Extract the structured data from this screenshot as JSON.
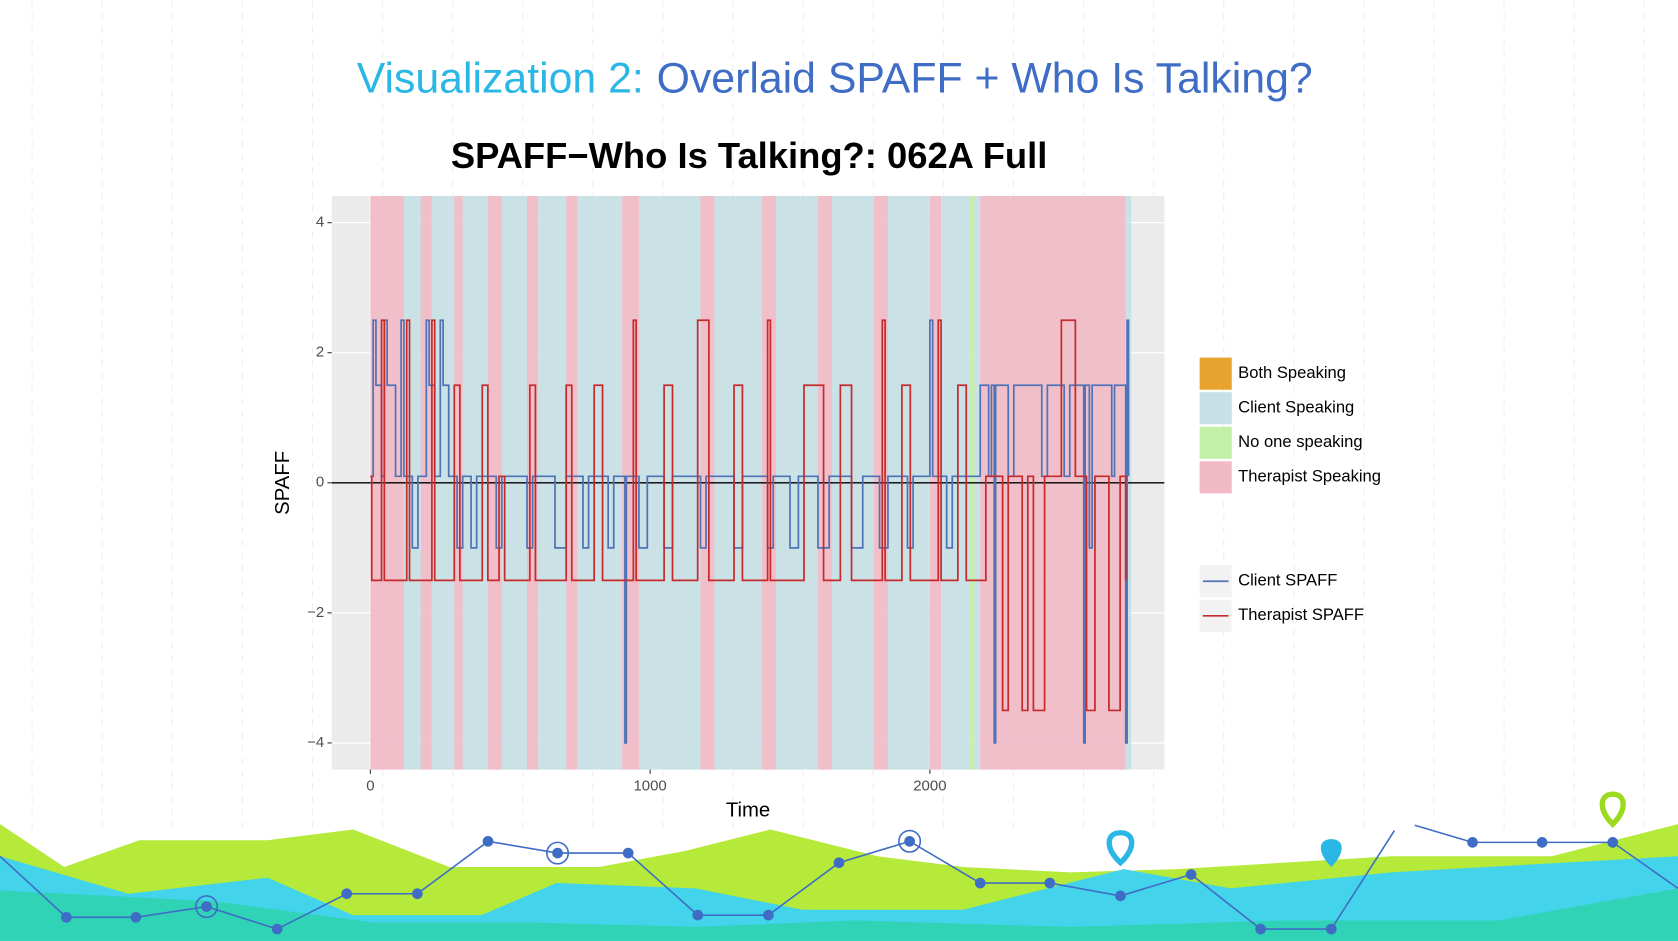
{
  "slide": {
    "title": [
      "Visualization 2:",
      "Overlaid SPAFF + Who Is Talking?"
    ]
  },
  "chart_data": {
    "type": "line",
    "step": true,
    "title": "SPAFF−Who Is Talking?: 062A Full",
    "x_label": "Time",
    "y_label": "SPAFF",
    "xlim": [
      -138,
      2838
    ],
    "ylim": [
      -4.41,
      4.41
    ],
    "xticks": [
      0,
      1000,
      2000
    ],
    "yticks": [
      {
        "value": -4,
        "label": "−4"
      },
      {
        "value": -2,
        "label": "−2"
      },
      0,
      2,
      4
    ],
    "grid": true,
    "hline": 0,
    "fills": [
      {
        "name": "Both Speaking",
        "color": "#E8A22E"
      },
      {
        "name": "Client Speaking",
        "color": "#C7E0E5"
      },
      {
        "name": "No one speaking",
        "color": "#C2F0A6"
      },
      {
        "name": "Therapist Speaking",
        "color": "#F1BAC6"
      }
    ],
    "spans": [
      {
        "x0": 0,
        "x1": 120,
        "fill": 3
      },
      {
        "x0": 120,
        "x1": 180,
        "fill": 1
      },
      {
        "x0": 180,
        "x1": 220,
        "fill": 3
      },
      {
        "x0": 220,
        "x1": 300,
        "fill": 1
      },
      {
        "x0": 300,
        "x1": 330,
        "fill": 3
      },
      {
        "x0": 330,
        "x1": 420,
        "fill": 1
      },
      {
        "x0": 420,
        "x1": 470,
        "fill": 3
      },
      {
        "x0": 470,
        "x1": 560,
        "fill": 1
      },
      {
        "x0": 560,
        "x1": 600,
        "fill": 3
      },
      {
        "x0": 600,
        "x1": 700,
        "fill": 1
      },
      {
        "x0": 700,
        "x1": 740,
        "fill": 3
      },
      {
        "x0": 740,
        "x1": 900,
        "fill": 1
      },
      {
        "x0": 900,
        "x1": 960,
        "fill": 3
      },
      {
        "x0": 960,
        "x1": 1180,
        "fill": 1
      },
      {
        "x0": 1180,
        "x1": 1230,
        "fill": 3
      },
      {
        "x0": 1230,
        "x1": 1400,
        "fill": 1
      },
      {
        "x0": 1400,
        "x1": 1450,
        "fill": 3
      },
      {
        "x0": 1450,
        "x1": 1600,
        "fill": 1
      },
      {
        "x0": 1600,
        "x1": 1650,
        "fill": 3
      },
      {
        "x0": 1650,
        "x1": 1800,
        "fill": 1
      },
      {
        "x0": 1800,
        "x1": 1850,
        "fill": 3
      },
      {
        "x0": 1850,
        "x1": 2000,
        "fill": 1
      },
      {
        "x0": 2000,
        "x1": 2040,
        "fill": 3
      },
      {
        "x0": 2040,
        "x1": 2140,
        "fill": 1
      },
      {
        "x0": 2140,
        "x1": 2160,
        "fill": 2
      },
      {
        "x0": 2160,
        "x1": 2180,
        "fill": 1
      },
      {
        "x0": 2180,
        "x1": 2700,
        "fill": 3
      },
      {
        "x0": 2700,
        "x1": 2720,
        "fill": 1
      }
    ],
    "series": [
      {
        "name": "Client SPAFF",
        "color": "#4F73B6",
        "x": [
          0,
          10,
          20,
          40,
          50,
          60,
          90,
          110,
          120,
          150,
          170,
          200,
          210,
          230,
          250,
          260,
          280,
          310,
          330,
          360,
          380,
          450,
          470,
          560,
          580,
          660,
          700,
          760,
          780,
          850,
          870,
          910,
          915,
          960,
          990,
          1050,
          1080,
          1180,
          1200,
          1300,
          1330,
          1420,
          1440,
          1500,
          1530,
          1600,
          1640,
          1720,
          1760,
          1820,
          1850,
          1920,
          1940,
          2000,
          2010,
          2060,
          2080,
          2180,
          2210,
          2220,
          2230,
          2235,
          2280,
          2300,
          2400,
          2420,
          2480,
          2500,
          2550,
          2555,
          2570,
          2580,
          2650,
          2660,
          2700,
          2705,
          2710
        ],
        "values": [
          0.1,
          2.5,
          1.5,
          0.1,
          2.5,
          1.5,
          0.1,
          2.5,
          0.1,
          -1,
          0.1,
          2.5,
          1.5,
          0.1,
          2.5,
          1.5,
          0.1,
          -1,
          0.1,
          -1,
          0.1,
          -1,
          0.1,
          -1,
          0.1,
          -1,
          0.1,
          -1,
          0.1,
          -1,
          0.1,
          -4,
          0.1,
          -1,
          0.1,
          -1,
          0.1,
          -1,
          0.1,
          -1,
          0.1,
          -1,
          0.1,
          -1,
          0.1,
          -1,
          0.1,
          -1,
          0.1,
          -1,
          0.1,
          -1,
          0.1,
          2.5,
          0.1,
          -1,
          0.1,
          1.5,
          0.1,
          1.5,
          -4,
          1.5,
          0.1,
          1.5,
          0.1,
          1.5,
          0.1,
          1.5,
          -4,
          1.5,
          -1,
          1.5,
          0.1,
          1.5,
          -4,
          2.5,
          0.1
        ]
      },
      {
        "name": "Therapist SPAFF",
        "color": "#C62A2A",
        "x": [
          0,
          5,
          40,
          50,
          130,
          140,
          220,
          230,
          300,
          320,
          400,
          420,
          460,
          480,
          570,
          590,
          700,
          720,
          800,
          830,
          940,
          950,
          1050,
          1080,
          1170,
          1210,
          1300,
          1330,
          1420,
          1430,
          1550,
          1620,
          1680,
          1720,
          1830,
          1840,
          1900,
          1930,
          2030,
          2040,
          2100,
          2130,
          2200,
          2260,
          2280,
          2330,
          2350,
          2370,
          2410,
          2470,
          2520,
          2560,
          2590,
          2640,
          2680,
          2700
        ],
        "values": [
          0.1,
          -1.5,
          2.5,
          -1.5,
          2.5,
          -1.5,
          2.5,
          -1.5,
          1.5,
          -1.5,
          1.5,
          -1.5,
          0.1,
          -1.5,
          1.5,
          -1.5,
          1.5,
          -1.5,
          1.5,
          -1.5,
          2.5,
          -1.5,
          1.5,
          -1.5,
          2.5,
          -1.5,
          1.5,
          -1.5,
          2.5,
          -1.5,
          1.5,
          -1.5,
          1.5,
          -1.5,
          2.5,
          -1.5,
          1.5,
          -1.5,
          2.5,
          -1.5,
          1.5,
          -1.5,
          0.1,
          -3.5,
          0.1,
          -3.5,
          0.1,
          -3.5,
          0.1,
          2.5,
          0.1,
          -3.5,
          0.1,
          -3.5,
          0.1,
          -1.5
        ]
      }
    ]
  }
}
